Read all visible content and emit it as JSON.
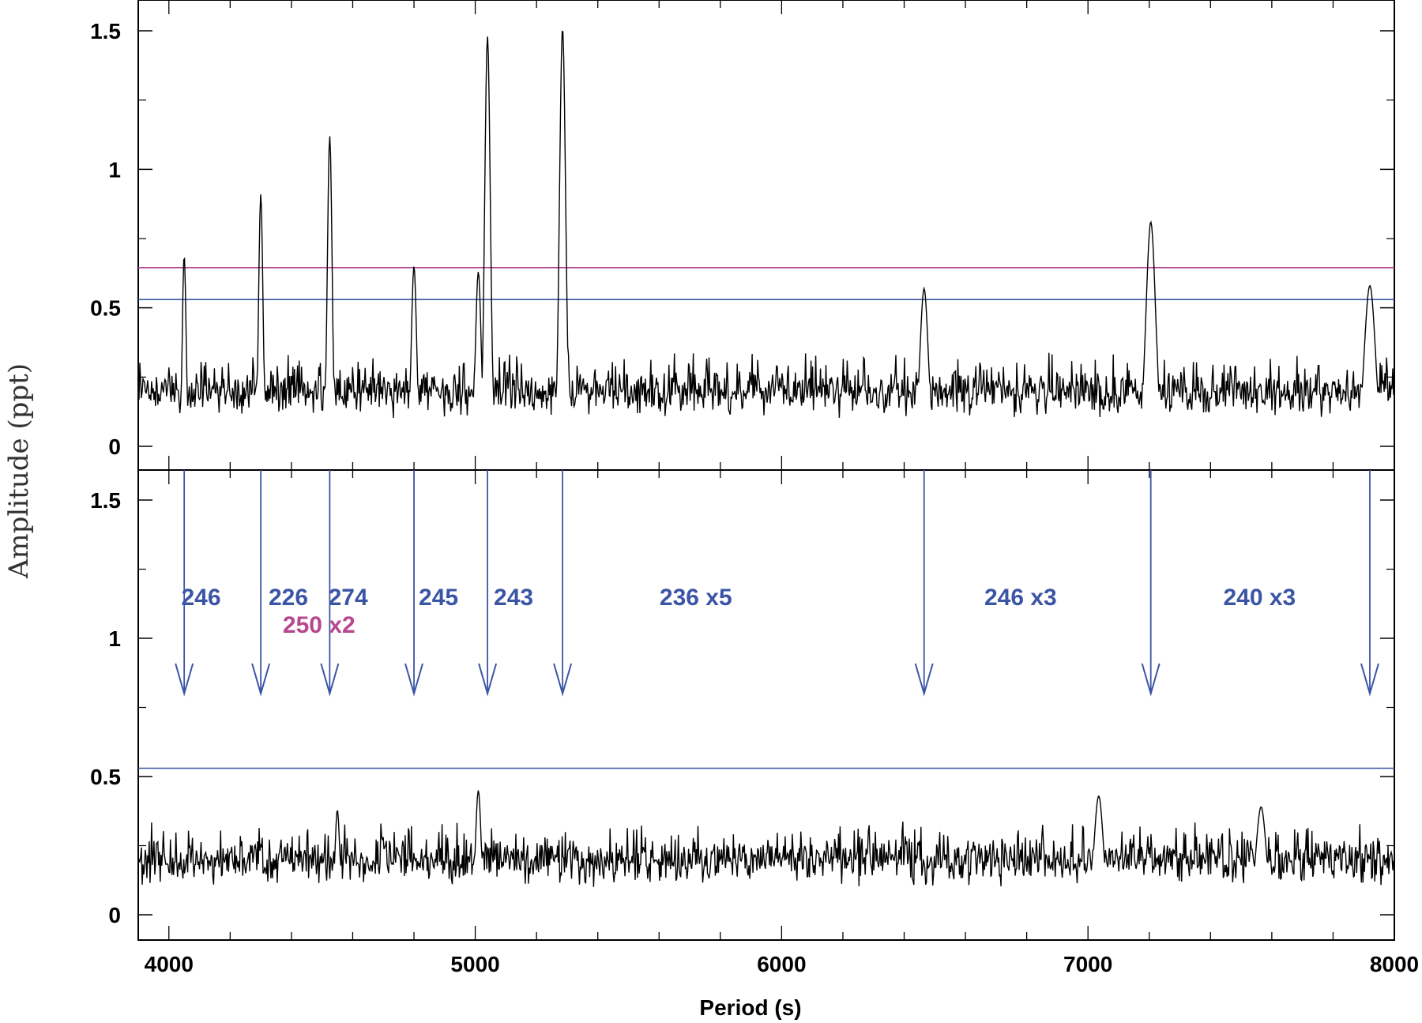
{
  "chart_data": {
    "type": "line",
    "xlabel": "Period (s)",
    "ylabel": "Amplitude (ppt)",
    "xlim": [
      3900,
      8000
    ],
    "x_ticks": [
      "4000",
      "5000",
      "6000",
      "7000",
      "8000"
    ],
    "colors": {
      "blue": "#3b55a5",
      "magenta": "#b5488f",
      "trace": "#000000"
    },
    "panels": [
      {
        "id": "top",
        "ylim": [
          -0.1,
          1.6
        ],
        "y_ticks": [
          "0",
          "0.5",
          "1",
          "1.5"
        ],
        "thresholds": [
          {
            "color": "#b5488f",
            "value": 0.645
          },
          {
            "color": "#3b55a5",
            "value": 0.53
          }
        ],
        "peaks": [
          {
            "x": 4050,
            "y": 0.69
          },
          {
            "x": 4300,
            "y": 0.91
          },
          {
            "x": 4525,
            "y": 1.12
          },
          {
            "x": 4800,
            "y": 0.65
          },
          {
            "x": 5010,
            "y": 0.63
          },
          {
            "x": 5040,
            "y": 1.48
          },
          {
            "x": 5285,
            "y": 1.51
          },
          {
            "x": 6465,
            "y": 0.57
          },
          {
            "x": 7205,
            "y": 0.81
          },
          {
            "x": 7920,
            "y": 0.58
          }
        ]
      },
      {
        "id": "bottom",
        "ylim": [
          -0.1,
          1.6
        ],
        "y_ticks": [
          "0",
          "0.5",
          "1",
          "1.5"
        ],
        "thresholds": [
          {
            "color": "#3b55a5",
            "value": 0.53
          }
        ],
        "peaks": [
          {
            "x": 5010,
            "y": 0.45
          },
          {
            "x": 7035,
            "y": 0.43
          },
          {
            "x": 4550,
            "y": 0.38
          },
          {
            "x": 7565,
            "y": 0.39
          }
        ]
      }
    ],
    "arrows": {
      "x": [
        4050,
        4300,
        4525,
        4800,
        5040,
        5285,
        6465,
        7205,
        7920
      ],
      "y_top": 1.6,
      "y_tip": 0.8
    },
    "annotations": [
      {
        "text": "246",
        "x": 4105,
        "y": 1.12,
        "color": "#3b55a5"
      },
      {
        "text": "226",
        "x": 4390,
        "y": 1.12,
        "color": "#3b55a5"
      },
      {
        "text": "274",
        "x": 4585,
        "y": 1.12,
        "color": "#3b55a5"
      },
      {
        "text": "245",
        "x": 4880,
        "y": 1.12,
        "color": "#3b55a5"
      },
      {
        "text": "243",
        "x": 5125,
        "y": 1.12,
        "color": "#3b55a5"
      },
      {
        "text": "236 x5",
        "x": 5720,
        "y": 1.12,
        "color": "#3b55a5"
      },
      {
        "text": "246 x3",
        "x": 6780,
        "y": 1.12,
        "color": "#3b55a5"
      },
      {
        "text": "240 x3",
        "x": 7560,
        "y": 1.12,
        "color": "#3b55a5"
      },
      {
        "text": "250 x2",
        "x": 4490,
        "y": 1.02,
        "color": "#b5488f"
      }
    ]
  }
}
